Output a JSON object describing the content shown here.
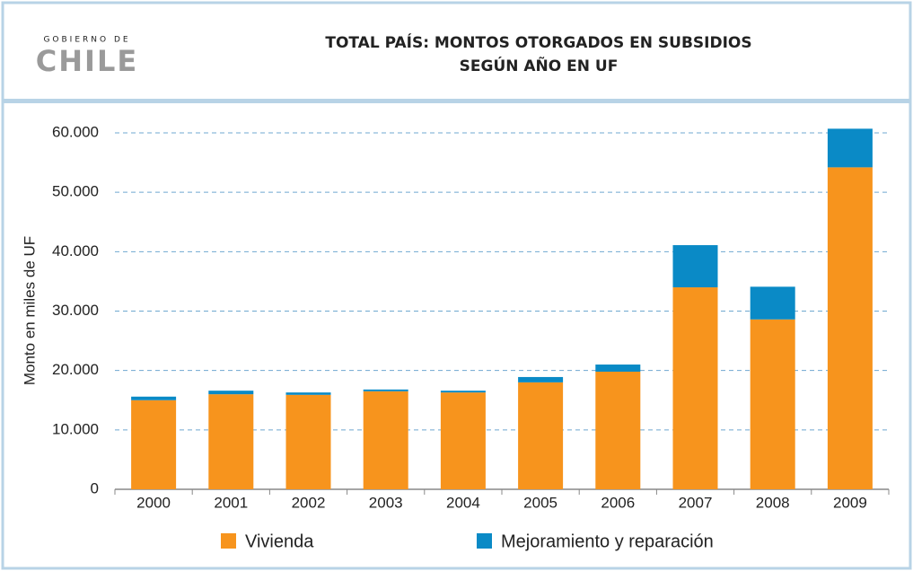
{
  "logo": {
    "top": "GOBIERNO DE",
    "name": "CHILE"
  },
  "chart_data": {
    "type": "stacked_bar",
    "title": [
      "TOTAL PAÍS: MONTOS OTORGADOS EN SUBSIDIOS",
      "SEGÚN AÑO EN UF"
    ],
    "ylabel": "Monto en miles de UF",
    "categories": [
      "2000",
      "2001",
      "2002",
      "2003",
      "2004",
      "2005",
      "2006",
      "2007",
      "2008",
      "2009"
    ],
    "series": [
      {
        "name": "Vivienda",
        "color": "#f7941d",
        "values": [
          15000,
          16000,
          15900,
          16500,
          16300,
          18000,
          19800,
          34000,
          28600,
          54200
        ]
      },
      {
        "name": "Mejoramiento y reparación",
        "color": "#0a8ac6",
        "values": [
          600,
          600,
          400,
          300,
          300,
          900,
          1200,
          7100,
          5500,
          6500
        ]
      }
    ],
    "ylim": [
      0,
      60000
    ],
    "yticks": [
      0,
      {
        "value": 10000,
        "label": "10.000"
      },
      {
        "value": 20000,
        "label": "20.000"
      },
      {
        "value": 30000,
        "label": "30.000"
      },
      {
        "value": 40000,
        "label": "40.000"
      },
      {
        "value": 50000,
        "label": "50.000"
      },
      {
        "value": 60000,
        "label": "60.000"
      }
    ],
    "grid": true,
    "legend": "bottom"
  }
}
